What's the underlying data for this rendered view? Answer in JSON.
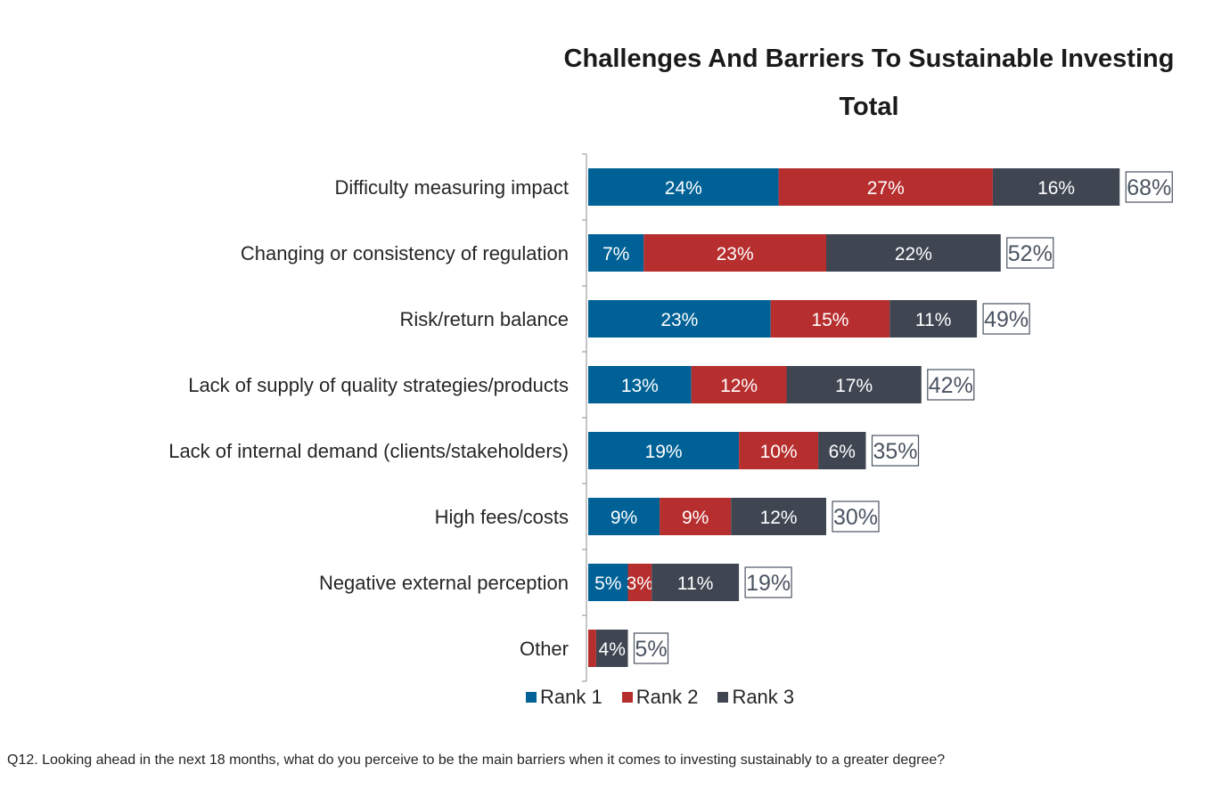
{
  "chart_data": {
    "type": "bar",
    "orientation": "horizontal",
    "stacked": true,
    "title": "Challenges And Barriers To Sustainable Investing",
    "subtitle": "Total",
    "categories": [
      "Difficulty measuring impact",
      "Changing or consistency of regulation",
      "Risk/return balance",
      "Lack of supply of quality strategies/products",
      "Lack of internal demand (clients/stakeholders)",
      "High fees/costs",
      "Negative external perception",
      "Other"
    ],
    "series": [
      {
        "name": "Rank 1",
        "color": "#006196",
        "values": [
          24,
          7,
          23,
          13,
          19,
          9,
          5,
          0
        ],
        "labels": [
          "24%",
          "7%",
          "23%",
          "13%",
          "19%",
          "9%",
          "5%",
          ""
        ]
      },
      {
        "name": "Rank 2",
        "color": "#b72e2e",
        "values": [
          27,
          23,
          15,
          12,
          10,
          9,
          3,
          1
        ],
        "labels": [
          "27%",
          "23%",
          "15%",
          "12%",
          "10%",
          "9%",
          "3%",
          ""
        ]
      },
      {
        "name": "Rank 3",
        "color": "#3f4652",
        "values": [
          16,
          22,
          11,
          17,
          6,
          12,
          11,
          4
        ],
        "labels": [
          "16%",
          "22%",
          "11%",
          "17%",
          "6%",
          "12%",
          "11%",
          "4%"
        ]
      }
    ],
    "totals": [
      "68%",
      "52%",
      "49%",
      "42%",
      "35%",
      "30%",
      "19%",
      "5%"
    ],
    "legend_position": "bottom",
    "grid": false
  },
  "footnote": "Q12. Looking ahead in the next 18 months, what do you perceive to be the main barriers when it comes to investing sustainably to a greater degree?"
}
